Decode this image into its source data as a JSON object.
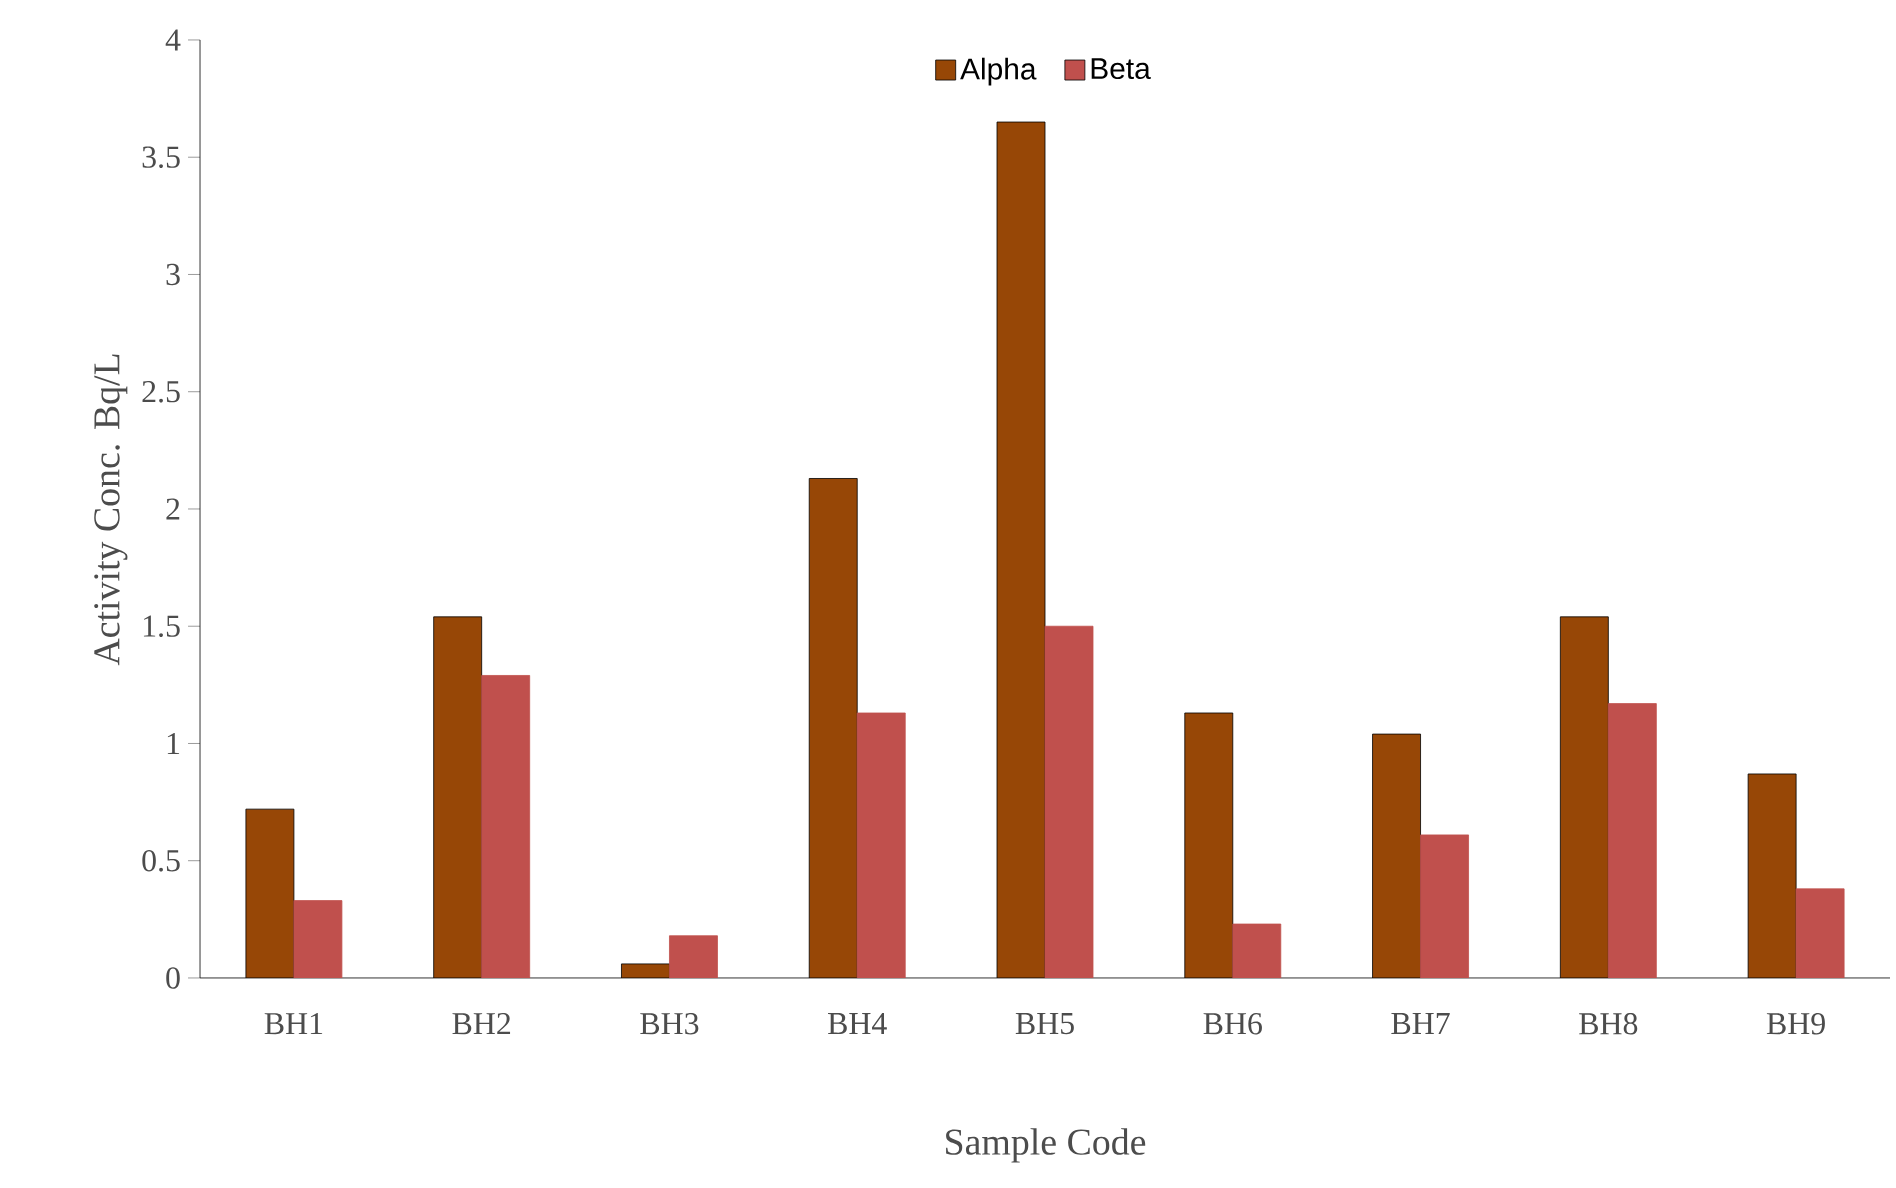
{
  "chart_data": {
    "type": "bar",
    "xlabel": "Sample Code",
    "ylabel": "Activity Conc. Bq/L",
    "categories": [
      "BH1",
      "BH2",
      "BH3",
      "BH4",
      "BH5",
      "BH6",
      "BH7",
      "BH8",
      "BH9"
    ],
    "series": [
      {
        "name": "Alpha",
        "color": "#974706",
        "values": [
          0.72,
          1.54,
          0.06,
          2.13,
          3.65,
          1.13,
          1.04,
          1.54,
          0.87
        ]
      },
      {
        "name": "Beta",
        "color": "#c0504d",
        "values": [
          0.33,
          1.29,
          0.18,
          1.13,
          1.5,
          0.23,
          0.61,
          1.17,
          0.38
        ]
      }
    ],
    "ylim": [
      0,
      4
    ],
    "yticks": [
      0,
      0.5,
      1,
      1.5,
      2,
      2.5,
      3,
      3.5,
      4
    ],
    "grid": false,
    "legend": "top"
  }
}
